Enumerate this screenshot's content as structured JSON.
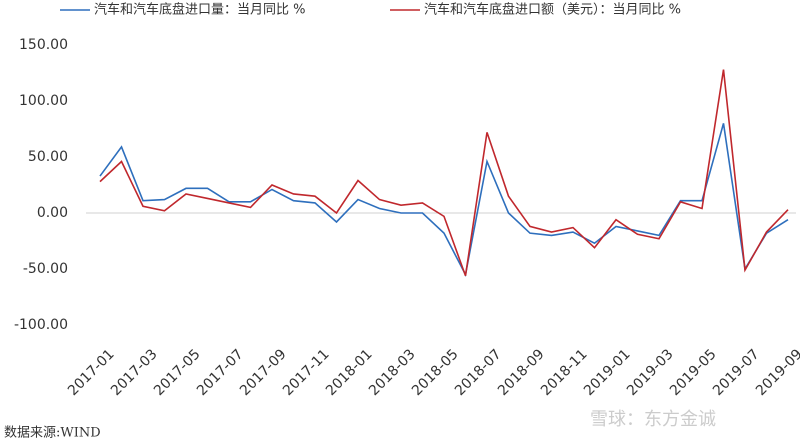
{
  "chart_data": {
    "type": "line",
    "categories": [
      "2017-01",
      null,
      "2017-03",
      null,
      "2017-05",
      null,
      "2017-07",
      null,
      "2017-09",
      null,
      "2017-11",
      null,
      "2018-01",
      null,
      "2018-03",
      null,
      "2018-05",
      null,
      "2018-07",
      null,
      "2018-09",
      null,
      "2018-11",
      null,
      "2019-01",
      null,
      "2019-03",
      null,
      "2019-05",
      null,
      "2019-07",
      null,
      "2019-09"
    ],
    "series": [
      {
        "name": "汽车和汽车底盘进口量：当月同比 %",
        "color": "#2e6fbd",
        "values": [
          33,
          59,
          11,
          12,
          22,
          22,
          10,
          10,
          21,
          11,
          9,
          -8,
          12,
          4,
          0,
          0,
          -18,
          -55,
          46,
          0,
          -18,
          -20,
          -17,
          -27,
          -12,
          -16,
          -20,
          11,
          11,
          80,
          -50,
          -18,
          -6
        ]
      },
      {
        "name": "汽车和汽车底盘进口额（美元）：当月同比 %",
        "color": "#c0282d",
        "values": [
          28,
          46,
          6,
          2,
          17,
          13,
          9,
          5,
          25,
          17,
          15,
          0,
          29,
          12,
          7,
          9,
          -3,
          -56,
          72,
          15,
          -12,
          -17,
          -13,
          -31,
          -6,
          -19,
          -23,
          10,
          4,
          128,
          -51,
          -17,
          3
        ]
      }
    ],
    "ylim": [
      -100,
      150
    ],
    "yticks": [
      {
        "value": -100,
        "label": "-100.00"
      },
      {
        "value": -50,
        "label": "-50.00"
      },
      {
        "value": 0,
        "label": "0.00"
      },
      {
        "value": 50,
        "label": "50.00"
      },
      {
        "value": 100,
        "label": "100.00"
      },
      {
        "value": 150,
        "label": "150.00"
      }
    ],
    "source": "数据来源:WIND",
    "watermark": "雪球：东方金诚"
  }
}
